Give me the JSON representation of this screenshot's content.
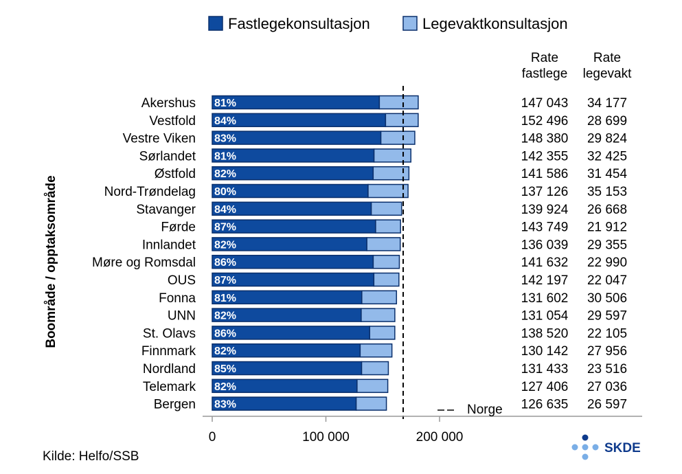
{
  "chart_data": {
    "type": "bar",
    "stacked": true,
    "orientation": "horizontal",
    "ylabel": "Boområde / opptaksområde",
    "xlim": [
      0,
      200000
    ],
    "xticks": [
      0,
      100000,
      200000
    ],
    "xtick_labels": [
      "0",
      "100 000",
      "200 000"
    ],
    "legend": {
      "placement": "top",
      "items": [
        {
          "name": "Fastlegekonsultasjon",
          "color": "#0e4a9e"
        },
        {
          "name": "Legevaktkonsultasjon",
          "color": "#93baea"
        }
      ]
    },
    "categories": [
      "Akershus",
      "Vestfold",
      "Vestre Viken",
      "Sørlandet",
      "Østfold",
      "Nord-Trøndelag",
      "Stavanger",
      "Førde",
      "Innlandet",
      "Møre og Romsdal",
      "OUS",
      "Fonna",
      "UNN",
      "St. Olavs",
      "Finnmark",
      "Nordland",
      "Telemark",
      "Bergen"
    ],
    "series": [
      {
        "name": "Fastlegekonsultasjon",
        "color": "#0e4a9e",
        "values": [
          147043,
          152496,
          148380,
          142355,
          141586,
          137126,
          139924,
          143749,
          136039,
          141632,
          142197,
          131602,
          131054,
          138520,
          130142,
          131433,
          127406,
          126635
        ]
      },
      {
        "name": "Legevaktkonsultasjon",
        "color": "#93baea",
        "values": [
          34177,
          28699,
          29824,
          32425,
          31454,
          35153,
          26668,
          21912,
          29355,
          22990,
          22047,
          30506,
          29597,
          22105,
          27956,
          23516,
          27036,
          26597
        ]
      }
    ],
    "share_labels": [
      "81%",
      "84%",
      "83%",
      "81%",
      "82%",
      "80%",
      "84%",
      "87%",
      "82%",
      "86%",
      "87%",
      "81%",
      "82%",
      "86%",
      "82%",
      "85%",
      "82%",
      "83%"
    ],
    "reference_line": {
      "label": "Norge",
      "value": 168000,
      "style": "dashed"
    },
    "table": {
      "col1_header": [
        "Rate",
        "fastlege"
      ],
      "col2_header": [
        "Rate",
        "legevakt"
      ],
      "col1": [
        "147 043",
        "152 496",
        "148 380",
        "142 355",
        "141 586",
        "137 126",
        "139 924",
        "143 749",
        "136 039",
        "141 632",
        "142 197",
        "131 602",
        "131 054",
        "138 520",
        "130 142",
        "131 433",
        "127 406",
        "126 635"
      ],
      "col2": [
        "34 177",
        "28 699",
        "29 824",
        "32 425",
        "31 454",
        "35 153",
        "26 668",
        "21 912",
        "29 355",
        "22 990",
        "22 047",
        "30 506",
        "29 597",
        "22 105",
        "27 956",
        "23 516",
        "27 036",
        "26 597"
      ]
    }
  },
  "source": "Kilde: Helfo/SSB",
  "logo_text": "SKDE"
}
